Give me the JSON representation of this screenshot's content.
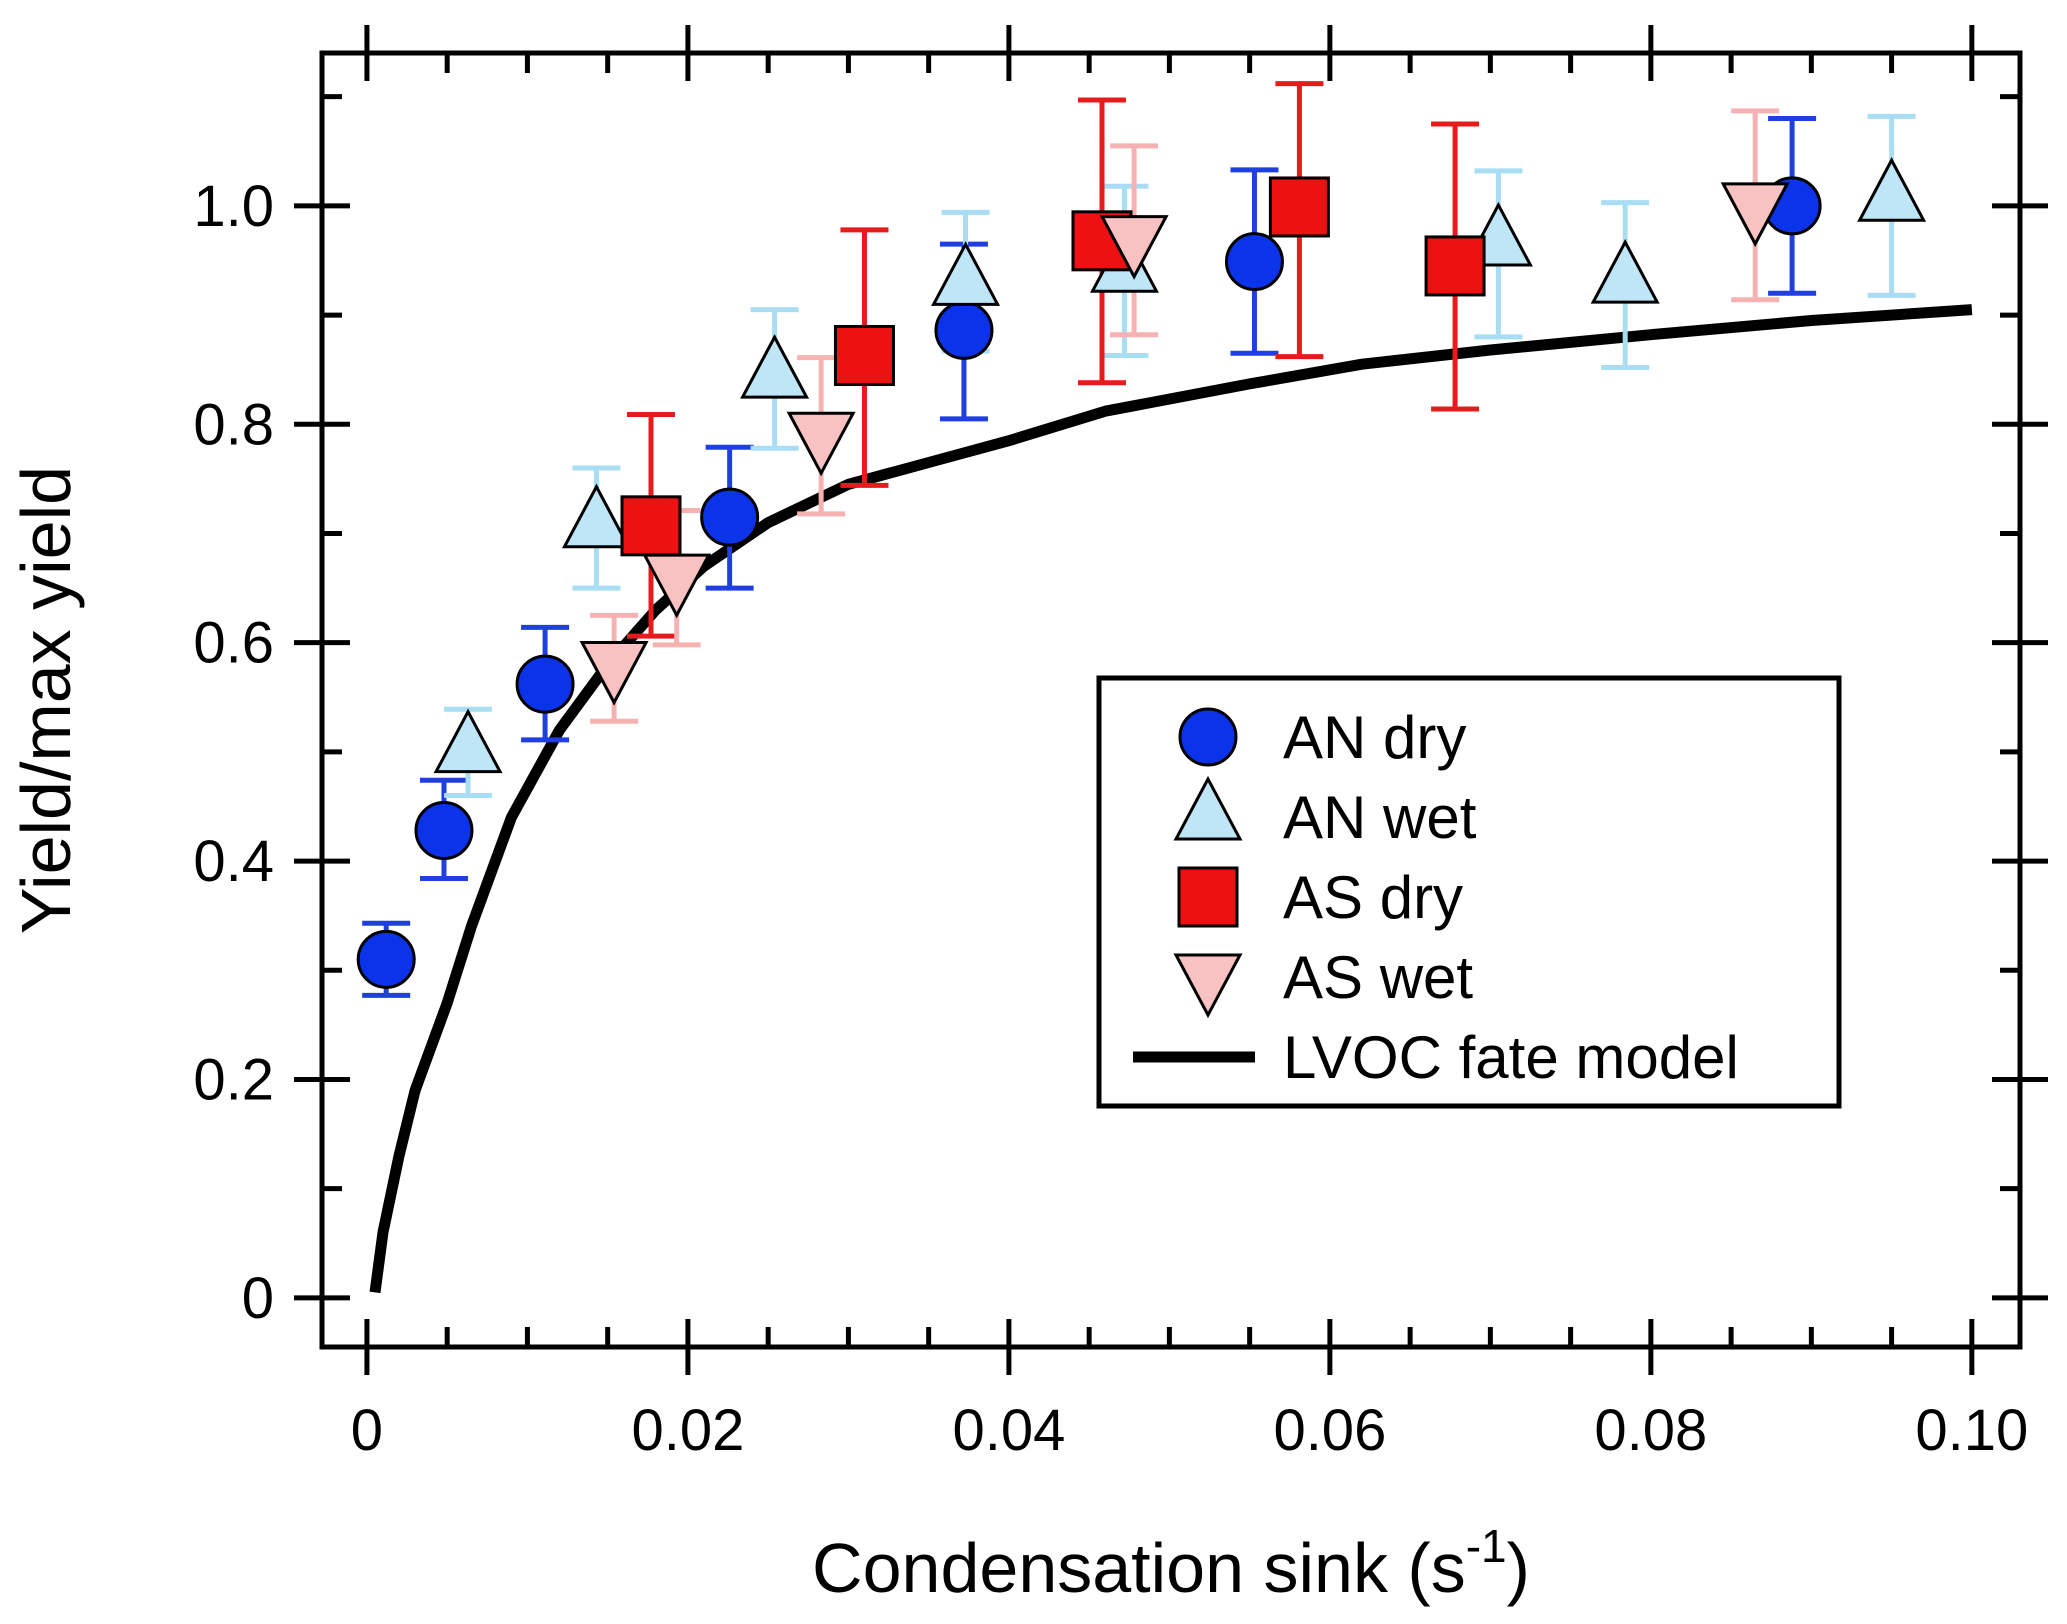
{
  "chart_data": {
    "type": "scatter",
    "xlabel": "Condensation sink (s",
    "xlabel_sup": "-1",
    "xlabel_close": ")",
    "ylabel": "Yield/max yield",
    "xlim": [
      -0.0028,
      0.103
    ],
    "ylim": [
      -0.045,
      1.14
    ],
    "x_ticks": [
      {
        "value": 0,
        "label": "0"
      },
      {
        "value": 0.02,
        "label": "0.02"
      },
      {
        "value": 0.04,
        "label": "0.04"
      },
      {
        "value": 0.06,
        "label": "0.06"
      },
      {
        "value": 0.08,
        "label": "0.08"
      },
      {
        "value": 0.1,
        "label": "0.10"
      }
    ],
    "x_minor_ticks": [
      0.005,
      0.01,
      0.015,
      0.025,
      0.03,
      0.035,
      0.045,
      0.05,
      0.055,
      0.065,
      0.07,
      0.075,
      0.085,
      0.09,
      0.095
    ],
    "y_ticks": [
      {
        "value": 0,
        "label": "0"
      },
      {
        "value": 0.2,
        "label": "0.2"
      },
      {
        "value": 0.4,
        "label": "0.4"
      },
      {
        "value": 0.6,
        "label": "0.6"
      },
      {
        "value": 0.8,
        "label": "0.8"
      },
      {
        "value": 1.0,
        "label": "1.0"
      }
    ],
    "y_minor_ticks": [
      0.1,
      0.3,
      0.5,
      0.7,
      0.9,
      1.1
    ],
    "grid": false,
    "legend_position": "center-right",
    "series": [
      {
        "name": "AN dry",
        "marker": "circle",
        "fill": "#0b33ea",
        "errcolor": "#1f3fe0",
        "points": [
          {
            "x": 0.0012,
            "y": 0.31,
            "lo": 0.277,
            "hi": 0.343
          },
          {
            "x": 0.0048,
            "y": 0.428,
            "lo": 0.384,
            "hi": 0.474
          },
          {
            "x": 0.0111,
            "y": 0.562,
            "lo": 0.511,
            "hi": 0.614
          },
          {
            "x": 0.0226,
            "y": 0.715,
            "lo": 0.65,
            "hi": 0.779
          },
          {
            "x": 0.0372,
            "y": 0.886,
            "lo": 0.805,
            "hi": 0.965
          },
          {
            "x": 0.0553,
            "y": 0.949,
            "lo": 0.865,
            "hi": 1.033
          },
          {
            "x": 0.0888,
            "y": 1.0,
            "lo": 0.92,
            "hi": 1.08
          }
        ]
      },
      {
        "name": "AN wet",
        "marker": "triangle-up",
        "fill": "#bfe6f7",
        "errcolor": "#a9ddf4",
        "points": [
          {
            "x": 0.0063,
            "y": 0.502,
            "lo": 0.46,
            "hi": 0.539
          },
          {
            "x": 0.0143,
            "y": 0.708,
            "lo": 0.65,
            "hi": 0.76
          },
          {
            "x": 0.0254,
            "y": 0.845,
            "lo": 0.778,
            "hi": 0.905
          },
          {
            "x": 0.0373,
            "y": 0.93,
            "lo": 0.867,
            "hi": 0.994
          },
          {
            "x": 0.0472,
            "y": 0.942,
            "lo": 0.863,
            "hi": 1.018
          },
          {
            "x": 0.0705,
            "y": 0.966,
            "lo": 0.88,
            "hi": 1.032
          },
          {
            "x": 0.0784,
            "y": 0.932,
            "lo": 0.852,
            "hi": 1.003
          },
          {
            "x": 0.095,
            "y": 1.007,
            "lo": 0.918,
            "hi": 1.082
          }
        ]
      },
      {
        "name": "AS dry",
        "marker": "square",
        "fill": "#ee1111",
        "errcolor": "#e61c1c",
        "points": [
          {
            "x": 0.0177,
            "y": 0.707,
            "lo": 0.606,
            "hi": 0.809
          },
          {
            "x": 0.031,
            "y": 0.863,
            "lo": 0.744,
            "hi": 0.978
          },
          {
            "x": 0.0458,
            "y": 0.968,
            "lo": 0.838,
            "hi": 1.097
          },
          {
            "x": 0.0581,
            "y": 0.999,
            "lo": 0.862,
            "hi": 1.112
          },
          {
            "x": 0.0678,
            "y": 0.945,
            "lo": 0.814,
            "hi": 1.075
          }
        ]
      },
      {
        "name": "AS wet",
        "marker": "triangle-down",
        "fill": "#f8c2c2",
        "errcolor": "#f6b2b2",
        "points": [
          {
            "x": 0.0154,
            "y": 0.58,
            "lo": 0.528,
            "hi": 0.625
          },
          {
            "x": 0.0193,
            "y": 0.66,
            "lo": 0.598,
            "hi": 0.721
          },
          {
            "x": 0.0283,
            "y": 0.79,
            "lo": 0.718,
            "hi": 0.861
          },
          {
            "x": 0.0478,
            "y": 0.97,
            "lo": 0.882,
            "hi": 1.055
          },
          {
            "x": 0.0865,
            "y": 1.0,
            "lo": 0.914,
            "hi": 1.087
          }
        ]
      },
      {
        "name": "LVOC fate model",
        "marker": "line",
        "color": "#000000",
        "points": [
          {
            "x": 0.0005,
            "y": 0.005
          },
          {
            "x": 0.001,
            "y": 0.06
          },
          {
            "x": 0.002,
            "y": 0.13
          },
          {
            "x": 0.003,
            "y": 0.19
          },
          {
            "x": 0.005,
            "y": 0.27
          },
          {
            "x": 0.0065,
            "y": 0.34
          },
          {
            "x": 0.009,
            "y": 0.44
          },
          {
            "x": 0.012,
            "y": 0.52
          },
          {
            "x": 0.015,
            "y": 0.58
          },
          {
            "x": 0.018,
            "y": 0.63
          },
          {
            "x": 0.021,
            "y": 0.67
          },
          {
            "x": 0.025,
            "y": 0.71
          },
          {
            "x": 0.03,
            "y": 0.745
          },
          {
            "x": 0.035,
            "y": 0.765
          },
          {
            "x": 0.04,
            "y": 0.785
          },
          {
            "x": 0.046,
            "y": 0.812
          },
          {
            "x": 0.055,
            "y": 0.837
          },
          {
            "x": 0.062,
            "y": 0.855
          },
          {
            "x": 0.07,
            "y": 0.868
          },
          {
            "x": 0.08,
            "y": 0.882
          },
          {
            "x": 0.09,
            "y": 0.895
          },
          {
            "x": 0.1,
            "y": 0.905
          }
        ]
      }
    ]
  }
}
